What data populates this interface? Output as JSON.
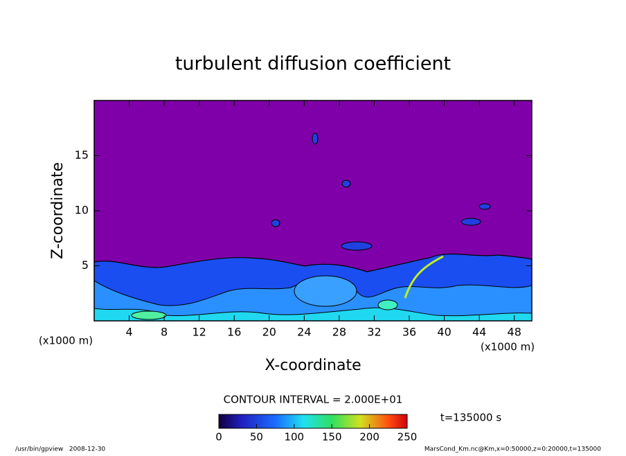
{
  "chart_data": {
    "type": "contour",
    "title": "turbulent diffusion coefficient",
    "xlabel": "X-coordinate",
    "ylabel": "Z-coordinate",
    "xunit": "(x1000 m)",
    "yunit": "(x1000 m)",
    "xlim": [
      0,
      50
    ],
    "ylim": [
      0,
      20
    ],
    "xticks": [
      4,
      8,
      12,
      16,
      20,
      24,
      28,
      32,
      36,
      40,
      44,
      48
    ],
    "yticks": [
      5,
      10,
      15
    ],
    "background_color": "#7f00a8",
    "colorbar": {
      "label": "CONTOUR INTERVAL = 2.000E+01",
      "lim": [
        0,
        250
      ],
      "ticks": [
        0,
        50,
        100,
        150,
        200,
        250
      ]
    },
    "time_label": "t=135000 s",
    "footer_left": "/usr/bin/gpview   2008-12-30",
    "footer_right": "MarsCond_Km.nc@Km,x=0:50000,z=0:20000,t=135000"
  }
}
